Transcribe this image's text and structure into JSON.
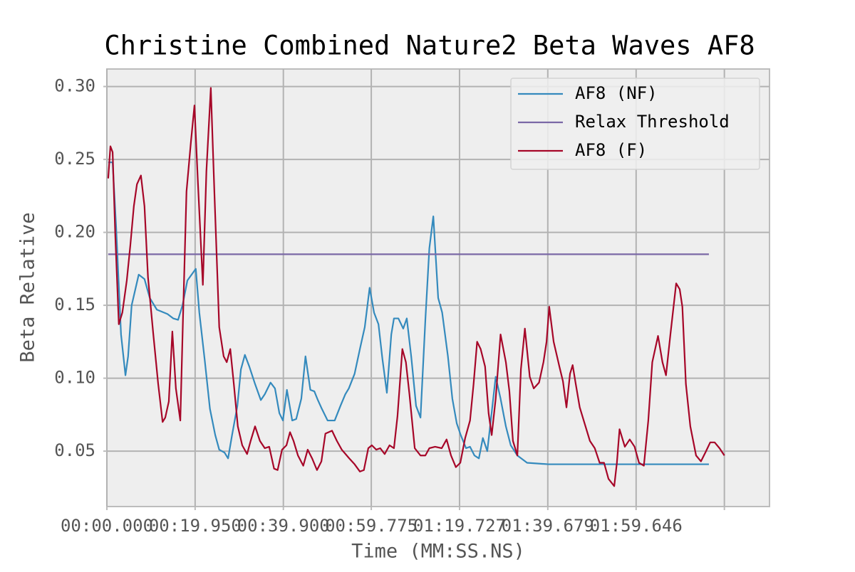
{
  "chart_data": {
    "type": "line",
    "title": "Christine Combined Nature2 Beta Waves AF8",
    "x_label": "Time (MM:SS.NS)",
    "y_label": "Beta Relative",
    "xlim": [
      0,
      149.8
    ],
    "ylim": [
      0.012,
      0.312
    ],
    "xticks": [
      {
        "value": 0,
        "label": "00:00.000"
      },
      {
        "value": 19.95,
        "label": "00:19.950"
      },
      {
        "value": 39.9,
        "label": "00:39.900"
      },
      {
        "value": 59.775,
        "label": "00:59.775"
      },
      {
        "value": 79.727,
        "label": "01:19.727"
      },
      {
        "value": 99.679,
        "label": "01:39.679"
      },
      {
        "value": 119.646,
        "label": "01:59.646"
      },
      {
        "value": 139.6,
        "label": null
      }
    ],
    "yticks": [
      {
        "value": 0.05,
        "label": "0.05"
      },
      {
        "value": 0.1,
        "label": "0.10"
      },
      {
        "value": 0.15,
        "label": "0.15"
      },
      {
        "value": 0.2,
        "label": "0.20"
      },
      {
        "value": 0.25,
        "label": "0.25"
      },
      {
        "value": 0.3,
        "label": "0.30"
      }
    ],
    "grid": true,
    "legend": "upper right",
    "series": [
      {
        "name": "AF8 (NF)",
        "color": "#348abd",
        "x": [
          0.3,
          1.3,
          2.1,
          3.2,
          4.2,
          4.8,
          5.6,
          7.2,
          8.5,
          9.7,
          11.3,
          13.7,
          15.0,
          16.1,
          17.1,
          18.2,
          20.1,
          20.9,
          22.1,
          23.3,
          24.5,
          25.4,
          26.6,
          27.4,
          28.3,
          29.5,
          30.3,
          31.2,
          32.2,
          33.5,
          34.8,
          35.7,
          37.0,
          38.0,
          39.0,
          39.8,
          40.7,
          41.9,
          42.8,
          43.96,
          44.9,
          46.0,
          46.9,
          47.7,
          48.6,
          49.9,
          51.5,
          52.8,
          53.9,
          54.7,
          56.0,
          57.2,
          58.3,
          59.4,
          60.4,
          61.4,
          62.3,
          63.3,
          64.3,
          64.9,
          65.9,
          67.0,
          67.8,
          68.8,
          69.9,
          70.9,
          72.0,
          72.9,
          73.8,
          74.9,
          75.8,
          77.1,
          78.1,
          79.1,
          80.0,
          81.2,
          82.1,
          83.1,
          84.1,
          85.0,
          86.0,
          86.9,
          87.9,
          89.0,
          90.2,
          91.3,
          92.8,
          95.0,
          99.8,
          136.1
        ],
        "values": [
          0.248,
          0.248,
          0.203,
          0.13,
          0.102,
          0.115,
          0.15,
          0.171,
          0.168,
          0.155,
          0.147,
          0.144,
          0.141,
          0.14,
          0.15,
          0.167,
          0.175,
          0.145,
          0.113,
          0.079,
          0.061,
          0.051,
          0.049,
          0.045,
          0.061,
          0.081,
          0.106,
          0.116,
          0.108,
          0.096,
          0.085,
          0.089,
          0.097,
          0.093,
          0.076,
          0.071,
          0.092,
          0.071,
          0.072,
          0.086,
          0.115,
          0.092,
          0.091,
          0.085,
          0.079,
          0.071,
          0.071,
          0.081,
          0.089,
          0.093,
          0.103,
          0.12,
          0.135,
          0.162,
          0.145,
          0.137,
          0.113,
          0.09,
          0.13,
          0.141,
          0.141,
          0.134,
          0.141,
          0.115,
          0.081,
          0.073,
          0.14,
          0.189,
          0.211,
          0.155,
          0.145,
          0.115,
          0.086,
          0.069,
          0.061,
          0.052,
          0.053,
          0.047,
          0.045,
          0.059,
          0.05,
          0.074,
          0.101,
          0.086,
          0.067,
          0.054,
          0.047,
          0.042,
          0.041,
          0.041
        ]
      },
      {
        "name": "Relax Threshold",
        "color": "#7a68a6",
        "x": [
          0.3,
          136.1
        ],
        "values": [
          0.185,
          0.185
        ]
      },
      {
        "name": "AF8 (F)",
        "color": "#a60628",
        "x": [
          0.3,
          0.8,
          1.3,
          1.9,
          2.7,
          3.5,
          4.5,
          5.3,
          6.1,
          6.8,
          7.7,
          8.5,
          9.3,
          10.5,
          11.6,
          12.6,
          13.2,
          14.0,
          14.8,
          15.6,
          16.6,
          17.2,
          18.0,
          19.0,
          19.8,
          20.6,
          21.7,
          22.5,
          23.5,
          24.3,
          25.4,
          26.4,
          27.1,
          27.9,
          28.7,
          29.6,
          30.6,
          31.7,
          32.5,
          33.5,
          34.6,
          35.7,
          36.7,
          37.8,
          38.6,
          39.6,
          40.6,
          41.4,
          42.2,
          43.2,
          44.4,
          45.4,
          46.4,
          47.5,
          48.5,
          49.4,
          50.9,
          52.0,
          53.1,
          54.8,
          56.0,
          57.2,
          58.1,
          59.1,
          59.9,
          60.9,
          61.8,
          62.8,
          63.9,
          64.9,
          65.7,
          66.8,
          67.6,
          68.4,
          69.6,
          70.9,
          72.0,
          72.9,
          74.2,
          75.7,
          76.8,
          77.8,
          78.9,
          79.9,
          81.0,
          82.1,
          82.9,
          83.7,
          84.5,
          85.5,
          86.3,
          87.0,
          87.9,
          89.0,
          90.2,
          91.0,
          91.8,
          92.8,
          93.6,
          94.5,
          95.6,
          96.5,
          97.7,
          98.7,
          99.4,
          100.0,
          101.0,
          102.3,
          103.1,
          103.9,
          104.7,
          105.3,
          106.0,
          106.9,
          108.1,
          109.2,
          110.3,
          111.4,
          112.4,
          113.4,
          114.7,
          115.3,
          115.9,
          117.1,
          118.2,
          119.3,
          120.3,
          121.4,
          122.4,
          123.3,
          124.6,
          125.6,
          126.4,
          127.4,
          128.7,
          129.5,
          130.1,
          130.9,
          131.9,
          133.2,
          134.3,
          135.3,
          136.4,
          137.4,
          138.5,
          139.6
        ],
        "values": [
          0.237,
          0.259,
          0.255,
          0.198,
          0.137,
          0.145,
          0.167,
          0.191,
          0.218,
          0.233,
          0.239,
          0.218,
          0.169,
          0.13,
          0.096,
          0.07,
          0.073,
          0.084,
          0.132,
          0.093,
          0.071,
          0.14,
          0.228,
          0.262,
          0.287,
          0.233,
          0.164,
          0.242,
          0.299,
          0.228,
          0.135,
          0.115,
          0.111,
          0.12,
          0.096,
          0.067,
          0.054,
          0.048,
          0.057,
          0.067,
          0.057,
          0.052,
          0.053,
          0.038,
          0.037,
          0.051,
          0.054,
          0.063,
          0.057,
          0.047,
          0.04,
          0.051,
          0.045,
          0.037,
          0.043,
          0.062,
          0.064,
          0.057,
          0.051,
          0.045,
          0.041,
          0.036,
          0.037,
          0.052,
          0.054,
          0.051,
          0.052,
          0.048,
          0.054,
          0.052,
          0.074,
          0.12,
          0.111,
          0.089,
          0.052,
          0.047,
          0.047,
          0.052,
          0.053,
          0.052,
          0.058,
          0.047,
          0.039,
          0.042,
          0.059,
          0.071,
          0.096,
          0.125,
          0.12,
          0.108,
          0.076,
          0.061,
          0.086,
          0.13,
          0.111,
          0.091,
          0.057,
          0.047,
          0.106,
          0.134,
          0.101,
          0.093,
          0.097,
          0.111,
          0.125,
          0.149,
          0.125,
          0.108,
          0.098,
          0.08,
          0.103,
          0.109,
          0.096,
          0.08,
          0.068,
          0.057,
          0.052,
          0.042,
          0.042,
          0.031,
          0.026,
          0.042,
          0.065,
          0.053,
          0.058,
          0.053,
          0.042,
          0.04,
          0.071,
          0.111,
          0.129,
          0.111,
          0.102,
          0.13,
          0.165,
          0.161,
          0.149,
          0.096,
          0.067,
          0.047,
          0.043,
          0.049,
          0.056,
          0.056,
          0.052,
          0.047
        ]
      }
    ]
  }
}
